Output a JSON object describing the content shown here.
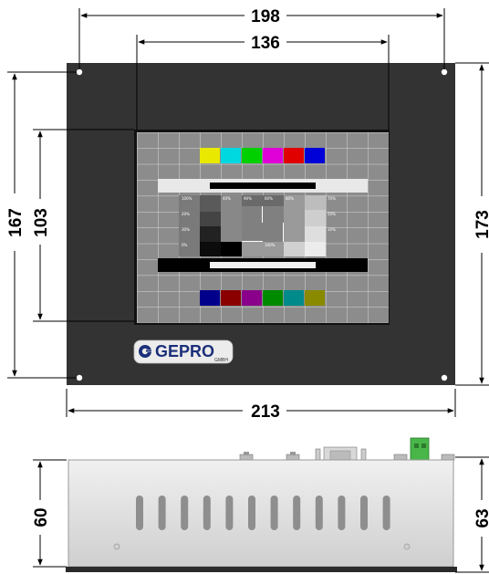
{
  "dimensions": {
    "front_outer_width": "198",
    "display_width": "136",
    "panel_width": "213",
    "display_height": "103",
    "hole_spacing_height": "167",
    "panel_height": "173",
    "side_body_height": "60",
    "side_total_height": "63"
  },
  "brand": {
    "name": "GEPRO",
    "suffix": "GMBH"
  },
  "test_pattern": {
    "top_colors": [
      "#e8e800",
      "#00d8e0",
      "#00d000",
      "#e000d8",
      "#e00000",
      "#0000d8"
    ],
    "bottom_colors": [
      "#00008a",
      "#8a0000",
      "#8a008a",
      "#008a00",
      "#008a8a",
      "#8a8a00"
    ],
    "grey_labels": [
      "100%",
      "40%",
      "90%",
      "60%",
      "80%",
      "70%",
      "20%",
      "50%",
      "30%",
      "10%",
      "0%",
      "100%"
    ]
  },
  "colors": {
    "panel": "#333333",
    "screen_bg": "#8c8c8c",
    "chassis": "#dcdcdc"
  }
}
